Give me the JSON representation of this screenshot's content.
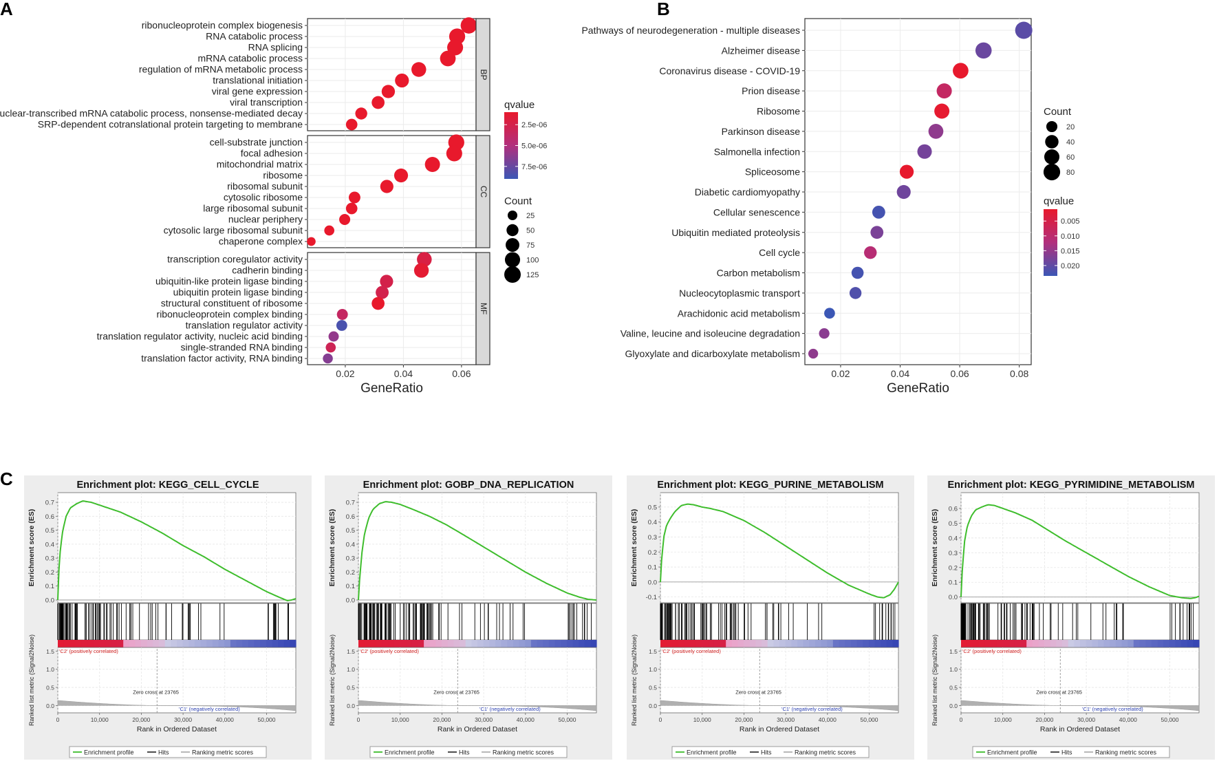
{
  "chart_data": [
    {
      "panel": "A",
      "type": "scatter",
      "xlabel": "GeneRatio",
      "xlim": [
        0.007,
        0.065
      ],
      "xticks": [
        0.02,
        0.04,
        0.06
      ],
      "xtick_labels": [
        "0.02",
        "0.04",
        "0.06"
      ],
      "grid": true,
      "facets": [
        {
          "name": "BP",
          "points": [
            {
              "term": "ribonucleoprotein complex biogenesis",
              "gene_ratio": 0.0625,
              "count": 120,
              "qvalue": 8e-07
            },
            {
              "term": "RNA catabolic process",
              "gene_ratio": 0.0585,
              "count": 115,
              "qvalue": 8e-07
            },
            {
              "term": "RNA splicing",
              "gene_ratio": 0.0578,
              "count": 113,
              "qvalue": 1e-06
            },
            {
              "term": "mRNA catabolic process",
              "gene_ratio": 0.0553,
              "count": 108,
              "qvalue": 1e-06
            },
            {
              "term": "regulation of mRNA metabolic process",
              "gene_ratio": 0.0453,
              "count": 92,
              "qvalue": 1e-06
            },
            {
              "term": "translational initiation",
              "gene_ratio": 0.0395,
              "count": 78,
              "qvalue": 1e-06
            },
            {
              "term": "viral gene expression",
              "gene_ratio": 0.0348,
              "count": 68,
              "qvalue": 1e-06
            },
            {
              "term": "viral transcription",
              "gene_ratio": 0.0313,
              "count": 62,
              "qvalue": 1e-06
            },
            {
              "term": "nuclear-transcribed mRNA catabolic process, nonsense-mediated decay",
              "gene_ratio": 0.0255,
              "count": 50,
              "qvalue": 1e-06
            },
            {
              "term": "SRP-dependent cotranslational protein targeting to membrane",
              "gene_ratio": 0.0222,
              "count": 44,
              "qvalue": 1e-06
            }
          ]
        },
        {
          "name": "CC",
          "points": [
            {
              "term": "cell-substrate junction",
              "gene_ratio": 0.0582,
              "count": 115,
              "qvalue": 1e-06
            },
            {
              "term": "focal adhesion",
              "gene_ratio": 0.0575,
              "count": 113,
              "qvalue": 1e-06
            },
            {
              "term": "mitochondrial matrix",
              "gene_ratio": 0.05,
              "count": 98,
              "qvalue": 1e-06
            },
            {
              "term": "ribosome",
              "gene_ratio": 0.0392,
              "count": 77,
              "qvalue": 1e-06
            },
            {
              "term": "ribosomal subunit",
              "gene_ratio": 0.0343,
              "count": 67,
              "qvalue": 1e-06
            },
            {
              "term": "cytosolic ribosome",
              "gene_ratio": 0.0232,
              "count": 46,
              "qvalue": 1e-06
            },
            {
              "term": "large ribosomal subunit",
              "gene_ratio": 0.0222,
              "count": 44,
              "qvalue": 1e-06
            },
            {
              "term": "nuclear periphery",
              "gene_ratio": 0.0198,
              "count": 39,
              "qvalue": 1e-06
            },
            {
              "term": "cytosolic large ribosomal subunit",
              "gene_ratio": 0.0145,
              "count": 29,
              "qvalue": 1e-06
            },
            {
              "term": "chaperone complex",
              "gene_ratio": 0.0083,
              "count": 17,
              "qvalue": 1e-06
            }
          ]
        },
        {
          "name": "MF",
          "points": [
            {
              "term": "transcription coregulator activity",
              "gene_ratio": 0.0472,
              "count": 93,
              "qvalue": 2.2e-06
            },
            {
              "term": "cadherin binding",
              "gene_ratio": 0.0462,
              "count": 91,
              "qvalue": 1.3e-06
            },
            {
              "term": "ubiquitin-like protein ligase binding",
              "gene_ratio": 0.0342,
              "count": 67,
              "qvalue": 2.5e-06
            },
            {
              "term": "ubiquitin protein ligase binding",
              "gene_ratio": 0.0327,
              "count": 64,
              "qvalue": 2.6e-06
            },
            {
              "term": "structural constituent of ribosome",
              "gene_ratio": 0.0313,
              "count": 62,
              "qvalue": 1e-06
            },
            {
              "term": "ribonucleoprotein complex binding",
              "gene_ratio": 0.019,
              "count": 38,
              "qvalue": 3.6e-06
            },
            {
              "term": "translation regulator activity",
              "gene_ratio": 0.0188,
              "count": 37,
              "qvalue": 8.5e-06
            },
            {
              "term": "translation regulator activity, nucleic acid binding",
              "gene_ratio": 0.016,
              "count": 31,
              "qvalue": 6e-06
            },
            {
              "term": "single-stranded RNA binding",
              "gene_ratio": 0.015,
              "count": 29,
              "qvalue": 3e-06
            },
            {
              "term": "translation factor activity, RNA binding",
              "gene_ratio": 0.014,
              "count": 28,
              "qvalue": 6.5e-06
            }
          ]
        }
      ],
      "color_legend": {
        "title": "qvalue",
        "min": 1e-06,
        "max": 9e-06,
        "ticks": [
          2.5e-06,
          5e-06,
          7.5e-06
        ],
        "tick_labels": [
          "2.5e-06",
          "5.0e-06",
          "7.5e-06"
        ],
        "low_color": "#e8192c",
        "high_color": "#3b57b5"
      },
      "size_legend": {
        "title": "Count",
        "values": [
          25,
          50,
          75,
          100,
          125
        ]
      }
    },
    {
      "panel": "B",
      "type": "scatter",
      "xlabel": "GeneRatio",
      "xlim": [
        0.008,
        0.084
      ],
      "xticks": [
        0.02,
        0.04,
        0.06,
        0.08
      ],
      "xtick_labels": [
        "0.02",
        "0.04",
        "0.06",
        "0.08"
      ],
      "grid": true,
      "points": [
        {
          "term": "Pathways of neurodegeneration - multiple diseases",
          "gene_ratio": 0.0815,
          "count": 88,
          "qvalue": 0.0205
        },
        {
          "term": "Alzheimer disease",
          "gene_ratio": 0.068,
          "count": 74,
          "qvalue": 0.019
        },
        {
          "term": "Coronavirus disease - COVID-19",
          "gene_ratio": 0.0603,
          "count": 66,
          "qvalue": 0.0012
        },
        {
          "term": "Prion disease",
          "gene_ratio": 0.0548,
          "count": 60,
          "qvalue": 0.0085
        },
        {
          "term": "Ribosome",
          "gene_ratio": 0.054,
          "count": 59,
          "qvalue": 0.0015
        },
        {
          "term": "Parkinson disease",
          "gene_ratio": 0.052,
          "count": 57,
          "qvalue": 0.0155
        },
        {
          "term": "Salmonella infection",
          "gene_ratio": 0.0482,
          "count": 52,
          "qvalue": 0.018
        },
        {
          "term": "Spliceosome",
          "gene_ratio": 0.0422,
          "count": 46,
          "qvalue": 0.0012
        },
        {
          "term": "Diabetic cardiomyopathy",
          "gene_ratio": 0.0412,
          "count": 45,
          "qvalue": 0.0185
        },
        {
          "term": "Cellular senescence",
          "gene_ratio": 0.0328,
          "count": 36,
          "qvalue": 0.0225
        },
        {
          "term": "Ubiquitin mediated proteolysis",
          "gene_ratio": 0.0322,
          "count": 35,
          "qvalue": 0.0175
        },
        {
          "term": "Cell cycle",
          "gene_ratio": 0.03,
          "count": 33,
          "qvalue": 0.011
        },
        {
          "term": "Carbon metabolism",
          "gene_ratio": 0.0257,
          "count": 28,
          "qvalue": 0.0225
        },
        {
          "term": "Nucleocytoplasmic transport",
          "gene_ratio": 0.025,
          "count": 27,
          "qvalue": 0.0215
        },
        {
          "term": "Arachidonic acid metabolism",
          "gene_ratio": 0.0163,
          "count": 18,
          "qvalue": 0.0235
        },
        {
          "term": "Valine, leucine and isoleucine degradation",
          "gene_ratio": 0.0145,
          "count": 16,
          "qvalue": 0.016
        },
        {
          "term": "Glyoxylate and dicarboxylate metabolism",
          "gene_ratio": 0.0108,
          "count": 12,
          "qvalue": 0.0155
        }
      ],
      "color_legend": {
        "title": "qvalue",
        "min": 0.001,
        "max": 0.0235,
        "ticks": [
          0.005,
          0.01,
          0.015,
          0.02
        ],
        "tick_labels": [
          "0.005",
          "0.010",
          "0.015",
          "0.020"
        ],
        "low_color": "#e8192c",
        "high_color": "#3b57b5"
      },
      "size_legend": {
        "title": "Count",
        "values": [
          20,
          40,
          60,
          80
        ]
      }
    },
    {
      "panel": "C",
      "type": "line",
      "subplots": [
        {
          "title": "Enrichment plot: KEGG_CELL_CYCLE",
          "ylabel": "Enrichment score (ES)",
          "ylim": [
            0,
            0.72
          ],
          "yticks": [
            0.0,
            0.1,
            0.2,
            0.3,
            0.4,
            0.5,
            0.6,
            0.7
          ],
          "ytick_labels": [
            "0.0",
            "0.1",
            "0.2",
            "0.3",
            "0.4",
            "0.5",
            "0.6",
            "0.7"
          ],
          "es_x": [
            0,
            200,
            600,
            1200,
            2000,
            3000,
            4500,
            6000,
            8000,
            10000,
            12000,
            15000,
            20000,
            25000,
            30000,
            35000,
            40000,
            45000,
            50000,
            53000,
            55000,
            56000,
            57000
          ],
          "es_y": [
            0.0,
            0.18,
            0.36,
            0.5,
            0.6,
            0.66,
            0.69,
            0.71,
            0.7,
            0.68,
            0.66,
            0.63,
            0.56,
            0.48,
            0.39,
            0.31,
            0.22,
            0.14,
            0.06,
            0.02,
            -0.005,
            0.0,
            0.01
          ],
          "hit_density": "dense-early",
          "zero_cross_label": "Zero cross at 23765"
        },
        {
          "title": "Enrichment plot: GOBP_DNA_REPLICATION",
          "ylabel": "Enrichment score (ES)",
          "ylim": [
            0,
            0.72
          ],
          "yticks": [
            0.0,
            0.1,
            0.2,
            0.3,
            0.4,
            0.5,
            0.6,
            0.7
          ],
          "ytick_labels": [
            "0.0",
            "0.1",
            "0.2",
            "0.3",
            "0.4",
            "0.5",
            "0.6",
            "0.7"
          ],
          "es_x": [
            0,
            300,
            800,
            1500,
            2500,
            3500,
            5000,
            6500,
            8000,
            10000,
            13000,
            17000,
            21000,
            25000,
            30000,
            35000,
            40000,
            45000,
            50000,
            53000,
            55000,
            57000
          ],
          "es_y": [
            0.0,
            0.15,
            0.33,
            0.48,
            0.59,
            0.65,
            0.69,
            0.705,
            0.7,
            0.685,
            0.65,
            0.6,
            0.54,
            0.47,
            0.38,
            0.29,
            0.2,
            0.12,
            0.05,
            0.02,
            0.005,
            0.0
          ],
          "hit_density": "very-dense-early",
          "zero_cross_label": "Zero cross at 23765"
        },
        {
          "title": "Enrichment plot: KEGG_PURINE_METABOLISM",
          "ylabel": "Enrichment score (ES)",
          "ylim": [
            -0.12,
            0.55
          ],
          "yticks": [
            -0.1,
            0.0,
            0.1,
            0.2,
            0.3,
            0.4,
            0.5
          ],
          "ytick_labels": [
            "-0.1",
            "0.0",
            "0.1",
            "0.2",
            "0.3",
            "0.4",
            "0.5"
          ],
          "es_x": [
            0,
            300,
            800,
            1500,
            2500,
            3500,
            5000,
            6500,
            8000,
            10000,
            12000,
            15000,
            20000,
            25000,
            30000,
            35000,
            40000,
            45000,
            50000,
            52000,
            53500,
            55000,
            56000,
            57000
          ],
          "es_y": [
            0.0,
            0.15,
            0.3,
            0.38,
            0.43,
            0.47,
            0.51,
            0.52,
            0.515,
            0.5,
            0.49,
            0.47,
            0.41,
            0.33,
            0.24,
            0.15,
            0.06,
            -0.02,
            -0.08,
            -0.1,
            -0.105,
            -0.085,
            -0.05,
            0.0
          ],
          "hit_density": "dense-early",
          "zero_cross_label": "Zero cross at 23765"
        },
        {
          "title": "Enrichment plot: KEGG_PYRIMIDINE_METABOLISM",
          "ylabel": "Enrichment score (ES)",
          "ylim": [
            -0.02,
            0.66
          ],
          "yticks": [
            0.0,
            0.1,
            0.2,
            0.3,
            0.4,
            0.5,
            0.6
          ],
          "ytick_labels": [
            "0.0",
            "0.1",
            "0.2",
            "0.3",
            "0.4",
            "0.5",
            "0.6"
          ],
          "es_x": [
            0,
            300,
            800,
            1500,
            2500,
            3500,
            5000,
            6500,
            8000,
            10000,
            13000,
            17000,
            21000,
            25000,
            30000,
            35000,
            40000,
            45000,
            50000,
            53000,
            55000,
            56000,
            57000
          ],
          "es_y": [
            0.0,
            0.18,
            0.37,
            0.48,
            0.55,
            0.59,
            0.61,
            0.625,
            0.62,
            0.6,
            0.57,
            0.52,
            0.45,
            0.38,
            0.3,
            0.22,
            0.14,
            0.07,
            0.01,
            -0.005,
            -0.01,
            -0.005,
            0.005
          ],
          "hit_density": "dense-early",
          "zero_cross_label": "Zero cross at 23765"
        }
      ],
      "shared": {
        "rank_xlim": [
          0,
          57000
        ],
        "rank_xticks": [
          0,
          10000,
          20000,
          30000,
          40000,
          50000
        ],
        "rank_xtick_labels": [
          "0",
          "10,000",
          "20,000",
          "30,000",
          "40,000",
          "50,000"
        ],
        "rank_xlabel": "Rank in Ordered Dataset",
        "metric_ylabel": "Ranked list metric (Signal2Noise)",
        "metric_ylim": [
          -0.2,
          1.6
        ],
        "metric_yticks": [
          0.0,
          0.5,
          1.0,
          1.5
        ],
        "metric_ytick_labels": [
          "0.0",
          "0.5",
          "1.0",
          "1.5"
        ],
        "positive_label": "'C2' (positively correlated)",
        "negative_label": "'C1' (negatively correlated)",
        "zero_cross_rank": 23765,
        "legend": [
          "Enrichment profile",
          "Hits",
          "Ranking metric scores"
        ],
        "es_color": "#3ebd2c",
        "hit_color": "#000000",
        "metric_color": "#b0b0b0"
      }
    }
  ],
  "panel_labels": {
    "a": "A",
    "b": "B",
    "c": "C"
  }
}
